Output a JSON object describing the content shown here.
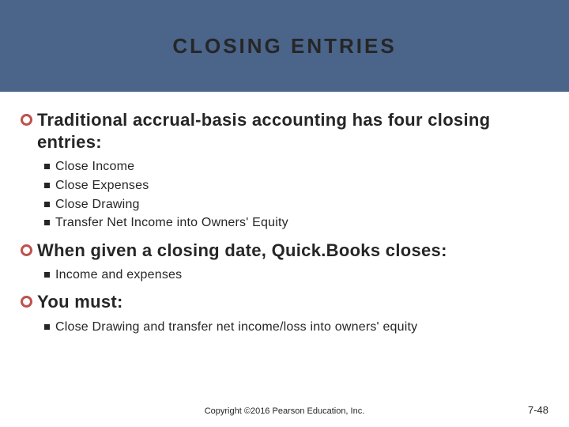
{
  "header": {
    "title": "CLOSING ENTRIES",
    "band_color": "#4a648a",
    "title_color": "#262626",
    "title_fontsize": 26,
    "title_letter_spacing": 3
  },
  "bullets": {
    "circle_border_color": "#c0514d",
    "square_color": "#262626"
  },
  "sections": [
    {
      "text": "Traditional accrual-basis accounting has four closing entries:",
      "subs": [
        "Close Income",
        "Close Expenses",
        "Close Drawing",
        "Transfer Net Income into Owners' Equity"
      ]
    },
    {
      "text": "When given a closing date, Quick.Books closes:",
      "subs": [
        "Income and expenses"
      ]
    },
    {
      "text": "You must:",
      "subs": [
        "Close Drawing and transfer net income/loss into owners' equity"
      ]
    }
  ],
  "footer": {
    "copyright": "Copyright ©2016 Pearson Education, Inc.",
    "slide_number": "7-48"
  },
  "typography": {
    "main_fontsize": 22,
    "sub_fontsize": 16,
    "footer_fontsize": 11,
    "slidenum_fontsize": 13
  }
}
